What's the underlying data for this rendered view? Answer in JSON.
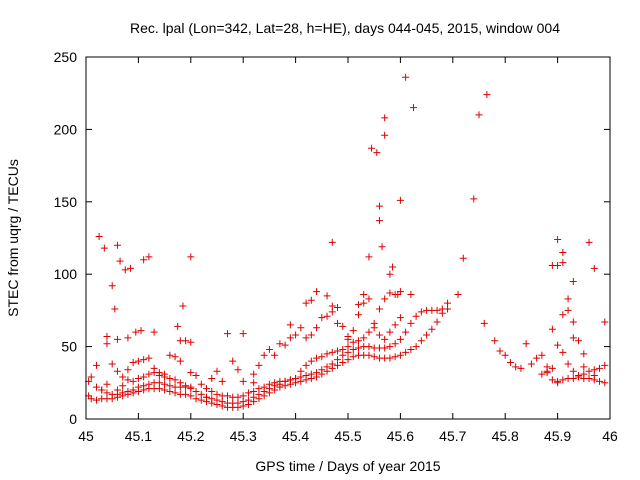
{
  "chart_data": {
    "type": "scatter",
    "title": "Rec. lpal (Lon=342, Lat=28, h=HE), days 044-045, 2015, window 004",
    "xlabel": "GPS time / Days of year 2015",
    "ylabel": "STEC from uqrg / TECUs",
    "xlim": [
      45,
      46
    ],
    "ylim": [
      0,
      250
    ],
    "x_ticks": [
      "45",
      "45.1",
      "45.2",
      "45.3",
      "45.4",
      "45.5",
      "45.6",
      "45.7",
      "45.8",
      "45.9",
      "46"
    ],
    "y_ticks": [
      "0",
      "50",
      "100",
      "150",
      "200",
      "250"
    ],
    "grid": false,
    "marker": "+",
    "color": "#dd0000",
    "points": [
      [
        45.005,
        16
      ],
      [
        45.01,
        14
      ],
      [
        45.02,
        13
      ],
      [
        45.03,
        14
      ],
      [
        45.04,
        14
      ],
      [
        45.05,
        14
      ],
      [
        45.06,
        15
      ],
      [
        45.07,
        16
      ],
      [
        45.08,
        17
      ],
      [
        45.09,
        18
      ],
      [
        45.1,
        19
      ],
      [
        45.11,
        20
      ],
      [
        45.12,
        21
      ],
      [
        45.13,
        21
      ],
      [
        45.14,
        21
      ],
      [
        45.15,
        20
      ],
      [
        45.16,
        19
      ],
      [
        45.17,
        18
      ],
      [
        45.18,
        17
      ],
      [
        45.19,
        17
      ],
      [
        45.2,
        16
      ],
      [
        45.21,
        14
      ],
      [
        45.22,
        13
      ],
      [
        45.23,
        12
      ],
      [
        45.24,
        11
      ],
      [
        45.25,
        10
      ],
      [
        45.26,
        9
      ],
      [
        45.27,
        8
      ],
      [
        45.28,
        8
      ],
      [
        45.29,
        8
      ],
      [
        45.3,
        9
      ],
      [
        45.31,
        10
      ],
      [
        45.32,
        12
      ],
      [
        45.33,
        14
      ],
      [
        45.34,
        16
      ],
      [
        45.35,
        18
      ],
      [
        45.36,
        20
      ],
      [
        45.37,
        22
      ],
      [
        45.38,
        23
      ],
      [
        45.39,
        24
      ],
      [
        45.4,
        25
      ],
      [
        45.41,
        26
      ],
      [
        45.42,
        27
      ],
      [
        45.43,
        28
      ],
      [
        45.44,
        29
      ],
      [
        45.45,
        31
      ],
      [
        45.46,
        33
      ],
      [
        45.47,
        35
      ],
      [
        45.48,
        37
      ],
      [
        45.49,
        39
      ],
      [
        45.5,
        41
      ],
      [
        45.51,
        43
      ],
      [
        45.52,
        44
      ],
      [
        45.53,
        44
      ],
      [
        45.54,
        44
      ],
      [
        45.55,
        43
      ],
      [
        45.56,
        42
      ],
      [
        45.57,
        42
      ],
      [
        45.58,
        42
      ],
      [
        45.59,
        43
      ],
      [
        45.6,
        44
      ],
      [
        45.61,
        46
      ],
      [
        45.62,
        48
      ],
      [
        45.63,
        50
      ],
      [
        45.64,
        54
      ],
      [
        45.65,
        58
      ],
      [
        45.66,
        62
      ],
      [
        45.67,
        67
      ],
      [
        45.68,
        73
      ],
      [
        45.69,
        80
      ],
      [
        45.71,
        86
      ],
      [
        45.005,
        26
      ],
      [
        45.02,
        22
      ],
      [
        45.03,
        20
      ],
      [
        45.04,
        18
      ],
      [
        45.05,
        17
      ],
      [
        45.06,
        17
      ],
      [
        45.07,
        18
      ],
      [
        45.08,
        19
      ],
      [
        45.09,
        20
      ],
      [
        45.1,
        22
      ],
      [
        45.11,
        23
      ],
      [
        45.12,
        24
      ],
      [
        45.13,
        25
      ],
      [
        45.14,
        25
      ],
      [
        45.15,
        24
      ],
      [
        45.16,
        23
      ],
      [
        45.17,
        22
      ],
      [
        45.18,
        22
      ],
      [
        45.19,
        22
      ],
      [
        45.2,
        21
      ],
      [
        45.21,
        19
      ],
      [
        45.22,
        17
      ],
      [
        45.23,
        15
      ],
      [
        45.24,
        14
      ],
      [
        45.25,
        13
      ],
      [
        45.26,
        12
      ],
      [
        45.27,
        11
      ],
      [
        45.28,
        11
      ],
      [
        45.29,
        11
      ],
      [
        45.3,
        12
      ],
      [
        45.31,
        13
      ],
      [
        45.32,
        15
      ],
      [
        45.33,
        17
      ],
      [
        45.34,
        19
      ],
      [
        45.35,
        21
      ],
      [
        45.36,
        23
      ],
      [
        45.37,
        24
      ],
      [
        45.38,
        26
      ],
      [
        45.39,
        27
      ],
      [
        45.4,
        28
      ],
      [
        45.41,
        29
      ],
      [
        45.42,
        30
      ],
      [
        45.43,
        31
      ],
      [
        45.44,
        32
      ],
      [
        45.45,
        34
      ],
      [
        45.46,
        36
      ],
      [
        45.47,
        38
      ],
      [
        45.48,
        41
      ],
      [
        45.49,
        44
      ],
      [
        45.5,
        46
      ],
      [
        45.51,
        48
      ],
      [
        45.52,
        49
      ],
      [
        45.53,
        50
      ],
      [
        45.54,
        50
      ],
      [
        45.55,
        49
      ],
      [
        45.56,
        49
      ],
      [
        45.57,
        49
      ],
      [
        45.58,
        50
      ],
      [
        45.59,
        52
      ],
      [
        45.6,
        55
      ],
      [
        45.61,
        60
      ],
      [
        45.62,
        66
      ],
      [
        45.63,
        71
      ],
      [
        45.64,
        74
      ],
      [
        45.65,
        75
      ],
      [
        45.66,
        75
      ],
      [
        45.67,
        75
      ],
      [
        45.68,
        76
      ],
      [
        45.69,
        76
      ],
      [
        45.02,
        37
      ],
      [
        45.05,
        38
      ],
      [
        45.06,
        33
      ],
      [
        45.07,
        29
      ],
      [
        45.08,
        27
      ],
      [
        45.09,
        26
      ],
      [
        45.1,
        28
      ],
      [
        45.11,
        29
      ],
      [
        45.12,
        31
      ],
      [
        45.13,
        32
      ],
      [
        45.14,
        30
      ],
      [
        45.15,
        29
      ],
      [
        45.16,
        28
      ],
      [
        45.17,
        27
      ],
      [
        45.18,
        25
      ],
      [
        45.19,
        23
      ],
      [
        45.2,
        22
      ],
      [
        45.22,
        24
      ],
      [
        45.23,
        21
      ],
      [
        45.24,
        19
      ],
      [
        45.25,
        17
      ],
      [
        45.26,
        16
      ],
      [
        45.27,
        16
      ],
      [
        45.28,
        15
      ],
      [
        45.29,
        15
      ],
      [
        45.3,
        16
      ],
      [
        45.31,
        18
      ],
      [
        45.32,
        19
      ],
      [
        45.33,
        21
      ],
      [
        45.34,
        22
      ],
      [
        45.35,
        24
      ],
      [
        45.36,
        25
      ],
      [
        45.37,
        26
      ],
      [
        45.38,
        26
      ],
      [
        45.39,
        27
      ],
      [
        45.4,
        28
      ],
      [
        45.41,
        33
      ],
      [
        45.42,
        37
      ],
      [
        45.43,
        40
      ],
      [
        45.44,
        42
      ],
      [
        45.45,
        43
      ],
      [
        45.46,
        45
      ],
      [
        45.47,
        46
      ],
      [
        45.48,
        47
      ],
      [
        45.49,
        48
      ],
      [
        45.5,
        50
      ],
      [
        45.51,
        53
      ],
      [
        45.52,
        54
      ],
      [
        45.53,
        56
      ],
      [
        45.54,
        60
      ],
      [
        45.55,
        63
      ],
      [
        45.56,
        58
      ],
      [
        45.57,
        55
      ],
      [
        45.58,
        60
      ],
      [
        45.59,
        65
      ],
      [
        45.6,
        70
      ],
      [
        45.01,
        29
      ],
      [
        45.03,
        20
      ],
      [
        45.04,
        24
      ],
      [
        45.06,
        20
      ],
      [
        45.07,
        23
      ],
      [
        45.08,
        34
      ],
      [
        45.09,
        39
      ],
      [
        45.1,
        40
      ],
      [
        45.11,
        41
      ],
      [
        45.12,
        42
      ],
      [
        45.13,
        35
      ],
      [
        45.14,
        32
      ],
      [
        45.15,
        31
      ],
      [
        45.16,
        44
      ],
      [
        45.17,
        43
      ],
      [
        45.18,
        40
      ],
      [
        45.19,
        54
      ],
      [
        45.2,
        53
      ],
      [
        45.21,
        30
      ],
      [
        45.23,
        15
      ],
      [
        45.24,
        28
      ],
      [
        45.25,
        33
      ],
      [
        45.26,
        26
      ],
      [
        45.28,
        40
      ],
      [
        45.29,
        34
      ],
      [
        45.3,
        26
      ],
      [
        45.32,
        31
      ],
      [
        45.33,
        37
      ],
      [
        45.34,
        44
      ],
      [
        45.35,
        48
      ],
      [
        45.36,
        44
      ],
      [
        45.37,
        52
      ],
      [
        45.38,
        51
      ],
      [
        45.39,
        56
      ],
      [
        45.4,
        58
      ],
      [
        45.41,
        63
      ],
      [
        45.42,
        56
      ],
      [
        45.43,
        58
      ],
      [
        45.44,
        63
      ],
      [
        45.45,
        70
      ],
      [
        45.46,
        71
      ],
      [
        45.47,
        78
      ],
      [
        45.48,
        77
      ],
      [
        45.49,
        64
      ],
      [
        45.5,
        57
      ],
      [
        45.51,
        61
      ],
      [
        45.52,
        72
      ],
      [
        45.53,
        80
      ],
      [
        45.54,
        83
      ],
      [
        45.55,
        66
      ],
      [
        45.56,
        76
      ],
      [
        45.57,
        83
      ],
      [
        45.58,
        87
      ],
      [
        45.59,
        86
      ],
      [
        45.6,
        88
      ],
      [
        45.62,
        86
      ],
      [
        45.025,
        126
      ],
      [
        45.035,
        118
      ],
      [
        45.05,
        92
      ],
      [
        45.055,
        76
      ],
      [
        45.06,
        120
      ],
      [
        45.065,
        109
      ],
      [
        45.075,
        103
      ],
      [
        45.085,
        104
      ],
      [
        45.095,
        60
      ],
      [
        45.105,
        61
      ],
      [
        45.11,
        110
      ],
      [
        45.12,
        112
      ],
      [
        45.08,
        56
      ],
      [
        45.04,
        57
      ],
      [
        45.04,
        52
      ],
      [
        45.06,
        55
      ],
      [
        45.13,
        60
      ],
      [
        45.175,
        64
      ],
      [
        45.18,
        54
      ],
      [
        45.185,
        78
      ],
      [
        45.2,
        112
      ],
      [
        45.2,
        32
      ],
      [
        45.27,
        59
      ],
      [
        45.3,
        59
      ],
      [
        45.32,
        25
      ],
      [
        45.39,
        65
      ],
      [
        45.42,
        80
      ],
      [
        45.43,
        82
      ],
      [
        45.44,
        88
      ],
      [
        45.46,
        85
      ],
      [
        45.47,
        122
      ],
      [
        45.47,
        74
      ],
      [
        45.48,
        66
      ],
      [
        45.5,
        55
      ],
      [
        45.52,
        79
      ],
      [
        45.53,
        86
      ],
      [
        45.54,
        112
      ],
      [
        45.545,
        187
      ],
      [
        45.555,
        184
      ],
      [
        45.56,
        147
      ],
      [
        45.56,
        137
      ],
      [
        45.565,
        119
      ],
      [
        45.57,
        208
      ],
      [
        45.57,
        196
      ],
      [
        45.58,
        100
      ],
      [
        45.585,
        105
      ],
      [
        45.595,
        86
      ],
      [
        45.6,
        151
      ],
      [
        45.61,
        236
      ],
      [
        45.625,
        215
      ],
      [
        45.72,
        111
      ],
      [
        45.74,
        152
      ],
      [
        45.75,
        210
      ],
      [
        45.765,
        224
      ],
      [
        45.76,
        66
      ],
      [
        45.78,
        54
      ],
      [
        45.79,
        47
      ],
      [
        45.8,
        44
      ],
      [
        45.81,
        39
      ],
      [
        45.82,
        36
      ],
      [
        45.83,
        35
      ],
      [
        45.84,
        52
      ],
      [
        45.85,
        38
      ],
      [
        45.86,
        42
      ],
      [
        45.87,
        44
      ],
      [
        45.88,
        32
      ],
      [
        45.89,
        27
      ],
      [
        45.9,
        26
      ],
      [
        45.91,
        27
      ],
      [
        45.92,
        28
      ],
      [
        45.93,
        28
      ],
      [
        45.94,
        29
      ],
      [
        45.95,
        28
      ],
      [
        45.96,
        28
      ],
      [
        45.97,
        27
      ],
      [
        45.98,
        26
      ],
      [
        45.99,
        25
      ],
      [
        45.88,
        36
      ],
      [
        45.89,
        62
      ],
      [
        45.89,
        106
      ],
      [
        45.9,
        124
      ],
      [
        45.9,
        106
      ],
      [
        45.91,
        115
      ],
      [
        45.91,
        108
      ],
      [
        45.92,
        75
      ],
      [
        45.92,
        83
      ],
      [
        45.93,
        95
      ],
      [
        45.93,
        67
      ],
      [
        45.94,
        54
      ],
      [
        45.95,
        45
      ],
      [
        45.96,
        122
      ],
      [
        45.97,
        104
      ],
      [
        45.99,
        67
      ],
      [
        45.9,
        51
      ],
      [
        45.91,
        46
      ],
      [
        45.92,
        38
      ],
      [
        45.93,
        33
      ],
      [
        45.94,
        30
      ],
      [
        45.95,
        31
      ],
      [
        45.96,
        33
      ],
      [
        45.97,
        34
      ],
      [
        45.98,
        35
      ],
      [
        45.99,
        37
      ],
      [
        45.87,
        31
      ],
      [
        45.88,
        33
      ],
      [
        45.89,
        35
      ],
      [
        45.9,
        25
      ],
      [
        45.91,
        72
      ],
      [
        45.93,
        56
      ],
      [
        45.95,
        36
      ],
      [
        45.97,
        30
      ]
    ]
  }
}
